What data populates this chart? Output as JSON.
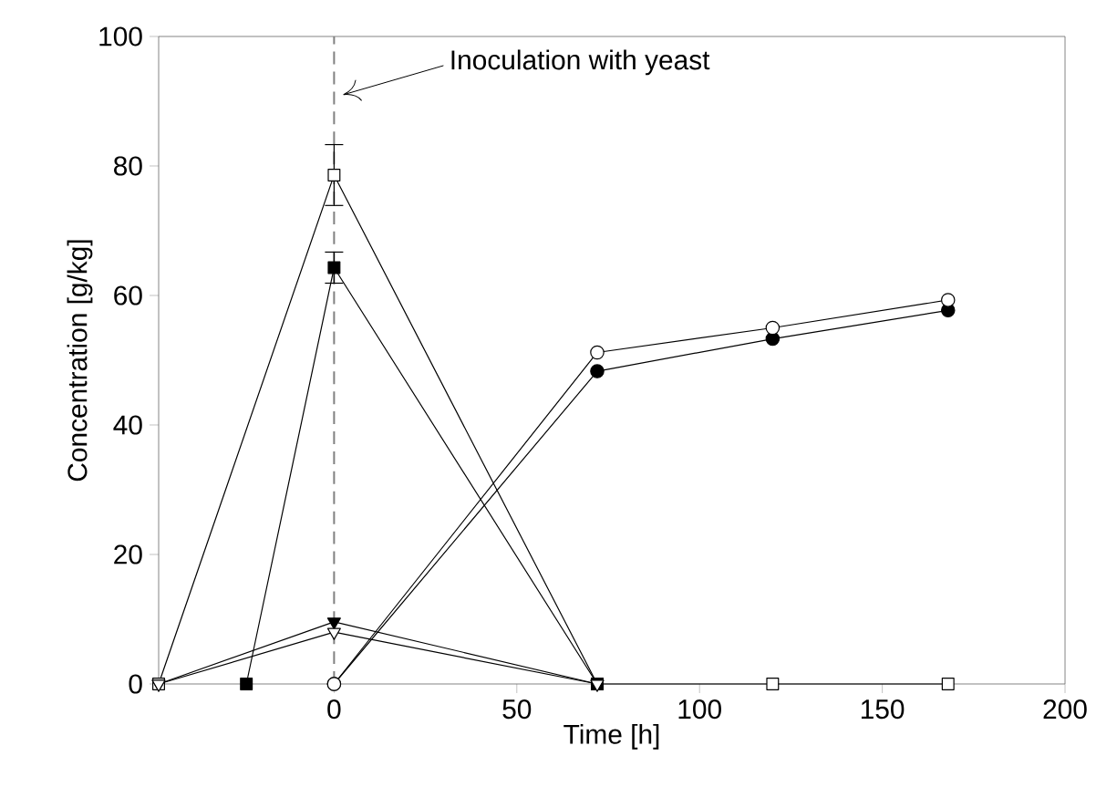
{
  "chart_data": {
    "type": "line",
    "xlabel": "Time [h]",
    "ylabel": "Concentration [g/kg]",
    "xlim": [
      -48,
      200
    ],
    "xticks": [
      0,
      50,
      100,
      150,
      200
    ],
    "ylim": [
      0,
      100
    ],
    "yticks": [
      0,
      20,
      40,
      60,
      80,
      100
    ],
    "series": [
      {
        "color": "#ffffff",
        "marker": "square",
        "x": [
          -48,
          0,
          72,
          120,
          168
        ],
        "values": [
          0,
          78.6,
          0,
          0,
          0
        ],
        "errors": [
          null,
          4.7,
          null,
          null,
          null
        ]
      },
      {
        "color": "#000000",
        "marker": "square",
        "x": [
          -24,
          0,
          72
        ],
        "values": [
          0,
          64.3,
          0
        ],
        "errors": [
          null,
          2.4,
          null
        ]
      },
      {
        "color": "#000000",
        "marker": "triangle",
        "x": [
          -48,
          0,
          72
        ],
        "values": [
          0,
          9.6,
          0
        ]
      },
      {
        "color": "#ffffff",
        "marker": "triangle",
        "x": [
          -48,
          0,
          72
        ],
        "values": [
          0,
          8,
          0
        ]
      },
      {
        "color": "#000000",
        "marker": "circle",
        "x": [
          0,
          72,
          120,
          168
        ],
        "values": [
          0,
          48.3,
          53.3,
          57.7
        ]
      },
      {
        "color": "#ffffff",
        "marker": "circle",
        "x": [
          0,
          72,
          120,
          168
        ],
        "values": [
          0,
          51.2,
          55,
          59.3
        ]
      }
    ],
    "ref_lines": [
      {
        "axis": "x",
        "value": 0,
        "color": "#808080",
        "line_style": "dashed"
      }
    ],
    "annotations": [
      "Inoculation with yeast"
    ]
  }
}
